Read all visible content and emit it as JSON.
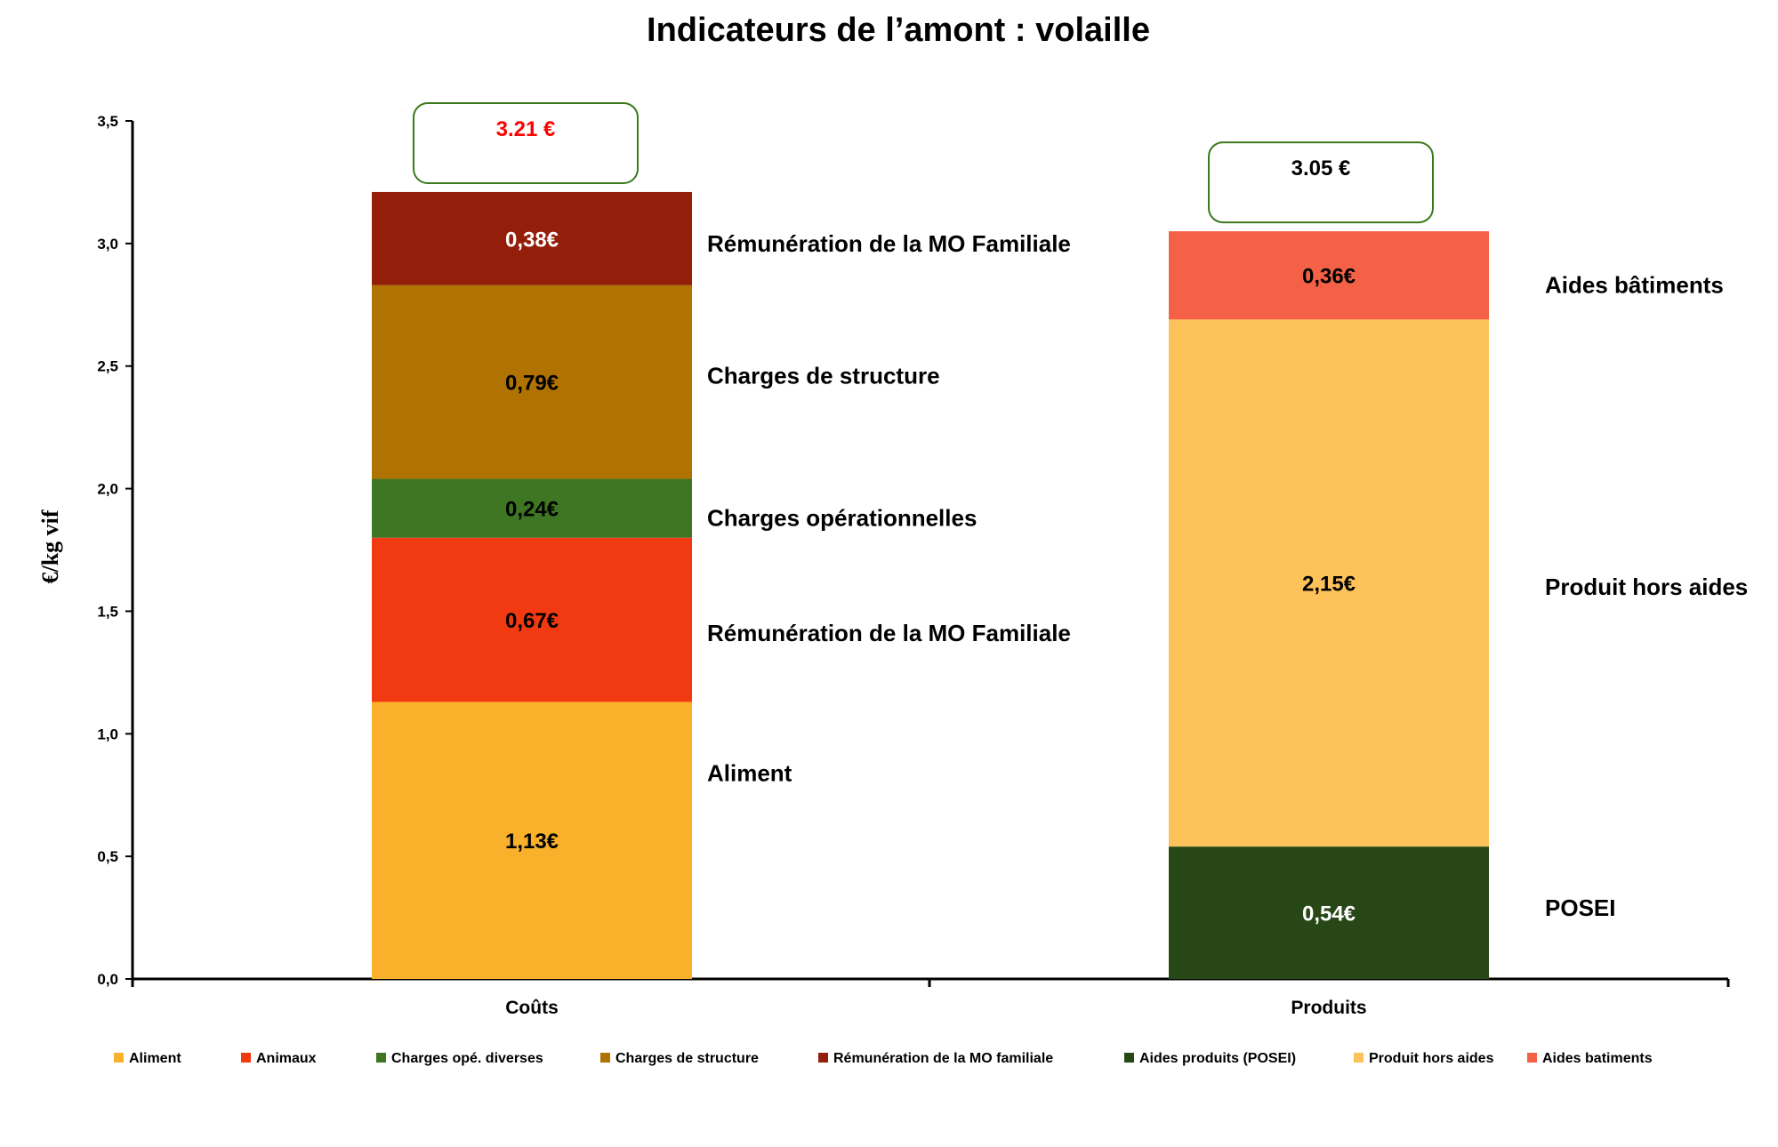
{
  "chart_data": {
    "type": "bar",
    "stacked": true,
    "title": "Indicateurs de l’amont : volaille",
    "ylabel": "€/kg vif",
    "ylim": [
      0,
      3.5
    ],
    "yticks": [
      "0,0",
      "0,5",
      "1,0",
      "1,5",
      "2,0",
      "2,5",
      "3,0",
      "3,5"
    ],
    "categories": [
      "Coûts",
      "Produits"
    ],
    "totals": [
      {
        "label": "3.21 €",
        "color": "#ff0000"
      },
      {
        "label": "3.05 €",
        "color": "#000000"
      }
    ],
    "series": [
      {
        "name": "Aliment",
        "color": "#f9b12c",
        "values": [
          1.13,
          0
        ],
        "labels": [
          "1,13€",
          ""
        ],
        "label_color": "#000000"
      },
      {
        "name": "Animaux",
        "color": "#f23a12",
        "values": [
          0.67,
          0
        ],
        "labels": [
          "0,67€",
          ""
        ],
        "label_color": "#000000"
      },
      {
        "name": "Charges opé. diverses",
        "color": "#3f7623",
        "values": [
          0.24,
          0
        ],
        "labels": [
          "0,24€",
          ""
        ],
        "label_color": "#000000"
      },
      {
        "name": "Charges de structure",
        "color": "#b07200",
        "values": [
          0.79,
          0
        ],
        "labels": [
          "0,79€",
          ""
        ],
        "label_color": "#000000"
      },
      {
        "name": "Rémunération de la MO familiale",
        "color": "#931f0a",
        "values": [
          0.38,
          0
        ],
        "labels": [
          "0,38€",
          ""
        ],
        "label_color": "#ffffff"
      },
      {
        "name": "Aides  produits (POSEI)",
        "color": "#284716",
        "values": [
          0,
          0.54
        ],
        "labels": [
          "",
          "0,54€"
        ],
        "label_color": "#ffffff"
      },
      {
        "name": "Produit hors aides",
        "color": "#fdc25a",
        "values": [
          0,
          2.15
        ],
        "labels": [
          "",
          "2,15€"
        ],
        "label_color": "#000000"
      },
      {
        "name": "Aides batiments",
        "color": "#f46146",
        "values": [
          0,
          0.36
        ],
        "labels": [
          "",
          "0,36€"
        ],
        "label_color": "#000000"
      }
    ],
    "annotations": [
      {
        "text": "Rémunération de la MO Familiale",
        "category": 0,
        "y": 3.0
      },
      {
        "text": "Charges de structure",
        "category": 0,
        "y": 2.46
      },
      {
        "text": "Charges opérationnelles",
        "category": 0,
        "y": 1.88
      },
      {
        "text": "Rémunération de la MO Familiale",
        "category": 0,
        "y": 1.41
      },
      {
        "text": "Aliment",
        "category": 0,
        "y": 0.84
      },
      {
        "text": "Aides bâtiments",
        "category": 1,
        "y": 2.83
      },
      {
        "text": "Produit hors aides",
        "category": 1,
        "y": 1.6
      },
      {
        "text": "POSEI",
        "category": 1,
        "y": 0.29
      }
    ],
    "grid": false,
    "legend": "bottom"
  }
}
